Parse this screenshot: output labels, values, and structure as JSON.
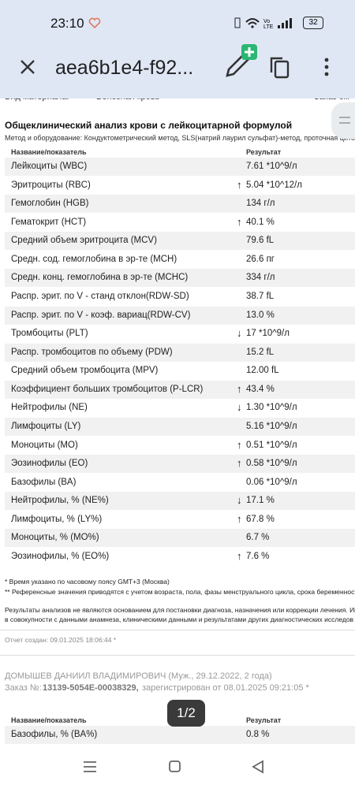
{
  "status_bar": {
    "time": "23:10",
    "battery": "32"
  },
  "app_bar": {
    "title": "aea6b1e4-f92..."
  },
  "document": {
    "top_cut": {
      "label": "Вид материала:",
      "value": "Венозная кровь",
      "order": "Заказ см"
    },
    "title": "Общеклинический анализ крови с лейкоцитарной формулой",
    "method": "Метод и оборудование: Кондуктометрический метод, SLS(натрий лаурил сульфат)-метод, проточная цитофлуори",
    "table": {
      "headers": [
        "Название/показатель",
        "Результат"
      ],
      "rows": [
        {
          "name": "Лейкоциты (WBC)",
          "result": "7.61 *10^9/л"
        },
        {
          "name": "Эритроциты (RBC)",
          "flag": "↑",
          "result": "5.04 *10^12/л"
        },
        {
          "name": "Гемоглобин (HGB)",
          "result": "134 г/л"
        },
        {
          "name": "Гематокрит (HCT)",
          "flag": "↑",
          "result": "40.1 %"
        },
        {
          "name": "Средний объем эритроцита (MCV)",
          "result": "79.6 fL"
        },
        {
          "name": "Средн. сод. гемоглобина в эр-те (MCH)",
          "result": "26.6 пг"
        },
        {
          "name": "Средн. конц. гемоглобина в эр-те (MCHC)",
          "result": "334 г/л"
        },
        {
          "name": "Распр. эрит. по V - станд отклон(RDW-SD)",
          "result": "38.7 fL"
        },
        {
          "name": "Распр. эрит. по V - коэф. вариац(RDW-CV)",
          "result": "13.0 %"
        },
        {
          "name": "Тромбоциты (PLT)",
          "flag": "↓",
          "result": "17 *10^9/л"
        },
        {
          "name": "Распр. тромбоцитов по объему (PDW)",
          "result": "15.2 fL"
        },
        {
          "name": "Средний объем тромбоцита (MPV)",
          "result": "12.00 fL"
        },
        {
          "name": "Коэффициент больших тромбоцитов (P-LCR)",
          "flag": "↑",
          "result": "43.4 %"
        },
        {
          "name": "Нейтрофилы (NE)",
          "flag": "↓",
          "result": "1.30 *10^9/л"
        },
        {
          "name": "Лимфоциты (LY)",
          "result": "5.16 *10^9/л"
        },
        {
          "name": "Моноциты (MO)",
          "flag": "↑",
          "result": "0.51 *10^9/л"
        },
        {
          "name": "Эозинофилы (EO)",
          "flag": "↑",
          "result": "0.58 *10^9/л"
        },
        {
          "name": "Базофилы (BA)",
          "result": "0.06 *10^9/л"
        },
        {
          "name": "Нейтрофилы, % (NE%)",
          "flag": "↓",
          "result": "17.1 %"
        },
        {
          "name": "Лимфоциты, % (LY%)",
          "flag": "↑",
          "result": "67.8 %"
        },
        {
          "name": "Моноциты, % (MO%)",
          "result": "6.7 %"
        },
        {
          "name": "Эозинофилы, % (EO%)",
          "flag": "↑",
          "result": "7.6 %"
        }
      ]
    },
    "notes": [
      "* Время указано по часовому поясу GMT+3 (Москва)",
      "** Референсные значения приводятся с учетом возраста, пола, фазы менструального цикла, срока беременност"
    ],
    "disclaimer": [
      "Результаты анализов не являются основанием для постановки диагноза, назначения или коррекции лечения. Ин",
      "в совокупности с данными анамнеза, клиническими данными и результатами других диагностических исследов"
    ],
    "created": "Отчет создан: 09.01.2025 18:06:44 *",
    "patient": "ДОМЫШЕВ ДАНИИЛ ВЛАДИМИРОВИЧ (Муж., 29.12.2022, 2 года)",
    "order": {
      "label": "Заказ №:",
      "number": "13139-5054E-00038329,",
      "registered": "зарегистрирован от 08.01.2025 09:21:05 *"
    },
    "table2": {
      "headers": [
        "Название/показатель",
        "Результат"
      ],
      "rows": [
        {
          "name": "Базофилы, % (BA%)",
          "result": "0.8 %"
        }
      ]
    }
  },
  "page_indicator": "1/2"
}
